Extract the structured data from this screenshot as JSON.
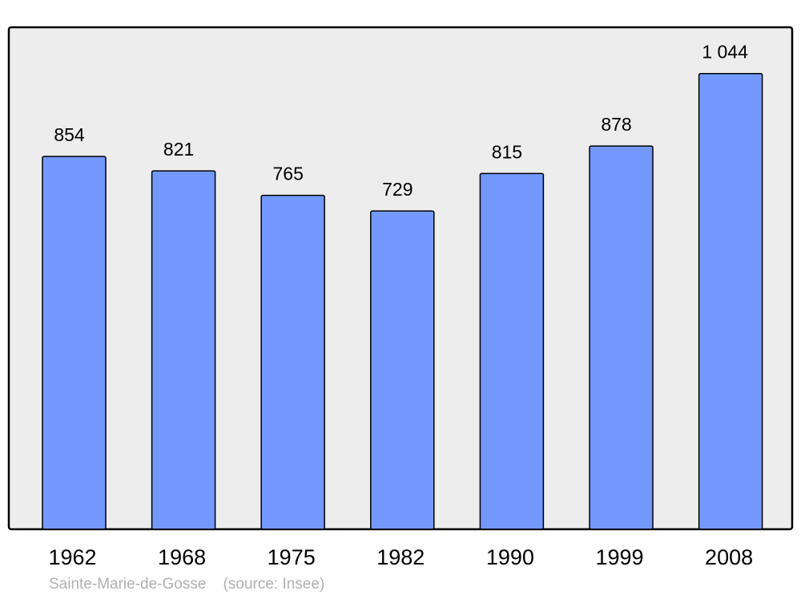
{
  "chart_data": {
    "type": "bar",
    "categories": [
      "1962",
      "1968",
      "1975",
      "1982",
      "1990",
      "1999",
      "2008"
    ],
    "values": [
      854,
      821,
      765,
      729,
      815,
      878,
      1044
    ],
    "data_labels": [
      "854",
      "821",
      "765",
      "729",
      "815",
      "878",
      "1 044"
    ],
    "title": "",
    "xlabel": "",
    "ylabel": "",
    "ylim": [
      0,
      1150
    ],
    "grid": false,
    "colors": {
      "bar": "#7399ff",
      "background": "#ededed",
      "border": "#000000"
    }
  },
  "footer": {
    "place": "Sainte-Marie-de-Gosse",
    "source": "(source: Insee)"
  }
}
